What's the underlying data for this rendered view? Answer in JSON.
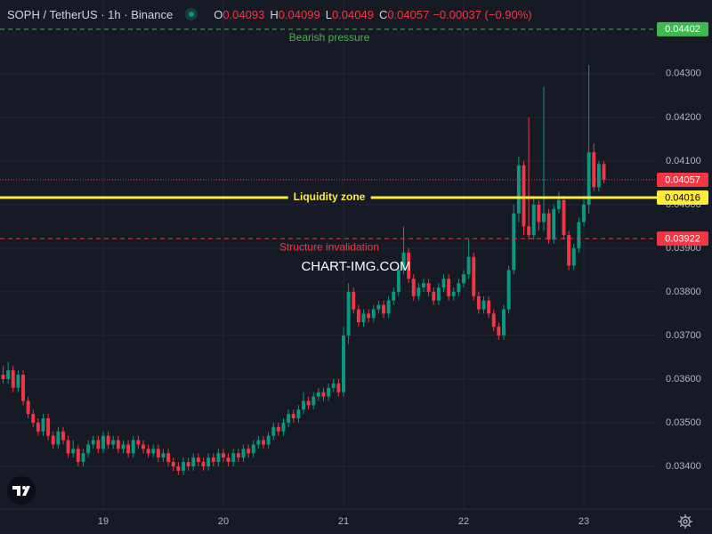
{
  "chart_data": {
    "type": "candlestick",
    "title": "SOPH / TetherUS · 1h · Binance",
    "legend": [
      {
        "key": "O",
        "value": 0.04093
      },
      {
        "key": "H",
        "value": 0.04099
      },
      {
        "key": "L",
        "value": 0.04049
      },
      {
        "key": "C",
        "value": 0.04057
      }
    ],
    "change": "−0.00037 (−0.90%)",
    "watermark": "CHART-IMG.COM",
    "up_color": "#089981",
    "down_color": "#f23645",
    "grid": true,
    "xlim": [
      -20.62,
      110.58
    ],
    "xticks": [
      {
        "value": 0,
        "label": "19"
      },
      {
        "value": 24,
        "label": "20"
      },
      {
        "value": 48,
        "label": "21"
      },
      {
        "value": 72,
        "label": "22"
      },
      {
        "value": 96,
        "label": "23"
      }
    ],
    "ylim": [
      0.03302,
      0.04469
    ],
    "yticks": [
      {
        "value": 0.034,
        "label": "0.03400"
      },
      {
        "value": 0.035,
        "label": "0.03500"
      },
      {
        "value": 0.036,
        "label": "0.03600"
      },
      {
        "value": 0.037,
        "label": "0.03700"
      },
      {
        "value": 0.038,
        "label": "0.03800"
      },
      {
        "value": 0.039,
        "label": "0.03900"
      },
      {
        "value": 0.04,
        "label": "0.04000"
      },
      {
        "value": 0.041,
        "label": "0.04100"
      },
      {
        "value": 0.042,
        "label": "0.04200"
      },
      {
        "value": 0.043,
        "label": "0.04300"
      }
    ],
    "levels": [
      {
        "label": "Bearish pressure",
        "value": 0.04402,
        "color": "#4caf50",
        "style": "dashed"
      },
      {
        "label": "Liquidity zone",
        "value": 0.04016,
        "color": "#ffeb3b",
        "style": "solid"
      },
      {
        "label": "Structure invalidation",
        "value": 0.03922,
        "color": "#f23645",
        "style": "dashed"
      }
    ],
    "last_price": 0.04057,
    "x": [
      -20,
      -19,
      -18,
      -17,
      -16,
      -15,
      -14,
      -13,
      -12,
      -11,
      -10,
      -9,
      -8,
      -7,
      -6,
      -5,
      -4,
      -3,
      -2,
      -1,
      0,
      1,
      2,
      3,
      4,
      5,
      6,
      7,
      8,
      9,
      10,
      11,
      12,
      13,
      14,
      15,
      16,
      17,
      18,
      19,
      20,
      21,
      22,
      23,
      24,
      25,
      26,
      27,
      28,
      29,
      30,
      31,
      32,
      33,
      34,
      35,
      36,
      37,
      38,
      39,
      40,
      41,
      42,
      43,
      44,
      45,
      46,
      47,
      48,
      49,
      50,
      51,
      52,
      53,
      54,
      55,
      56,
      57,
      58,
      59,
      60,
      61,
      62,
      63,
      64,
      65,
      66,
      67,
      68,
      69,
      70,
      71,
      72,
      73,
      74,
      75,
      76,
      77,
      78,
      79,
      80,
      81,
      82,
      83,
      84,
      85,
      86,
      87,
      88,
      89,
      90,
      91,
      92,
      93,
      94,
      95,
      96,
      97,
      98,
      99,
      100
    ],
    "open": [
      0.0361,
      0.036,
      0.0362,
      0.0358,
      0.0361,
      0.0355,
      0.0352,
      0.035,
      0.0348,
      0.0351,
      0.0347,
      0.0345,
      0.0348,
      0.0346,
      0.0343,
      0.0344,
      0.0341,
      0.0343,
      0.0345,
      0.0346,
      0.0344,
      0.0347,
      0.0345,
      0.0346,
      0.0344,
      0.0345,
      0.0343,
      0.0346,
      0.0345,
      0.0344,
      0.0343,
      0.0344,
      0.0342,
      0.0343,
      0.0341,
      0.034,
      0.0339,
      0.0341,
      0.034,
      0.0342,
      0.0341,
      0.034,
      0.0342,
      0.0341,
      0.0343,
      0.0342,
      0.0341,
      0.0343,
      0.0342,
      0.0344,
      0.0343,
      0.0345,
      0.0346,
      0.0345,
      0.0347,
      0.0349,
      0.0348,
      0.035,
      0.0352,
      0.0351,
      0.0353,
      0.0355,
      0.0354,
      0.0356,
      0.0357,
      0.0356,
      0.0358,
      0.0359,
      0.0357,
      0.037,
      0.038,
      0.0376,
      0.0373,
      0.0375,
      0.0374,
      0.0376,
      0.0377,
      0.0375,
      0.0378,
      0.038,
      0.0385,
      0.0389,
      0.0383,
      0.0379,
      0.0381,
      0.0382,
      0.038,
      0.0378,
      0.0381,
      0.0383,
      0.0379,
      0.038,
      0.0382,
      0.0384,
      0.0388,
      0.0379,
      0.0376,
      0.0378,
      0.0375,
      0.0372,
      0.037,
      0.0376,
      0.0385,
      0.0398,
      0.0409,
      0.0395,
      0.0393,
      0.04,
      0.0396,
      0.0398,
      0.0392,
      0.0399,
      0.0401,
      0.0393,
      0.0386,
      0.039,
      0.0396,
      0.04,
      0.0412,
      0.0404,
      0.04093
    ],
    "high": [
      0.0363,
      0.0364,
      0.0363,
      0.0362,
      0.0362,
      0.0356,
      0.0353,
      0.0351,
      0.0352,
      0.0352,
      0.0348,
      0.0349,
      0.0349,
      0.0347,
      0.0346,
      0.0345,
      0.0344,
      0.0346,
      0.0347,
      0.0347,
      0.0348,
      0.0348,
      0.0347,
      0.0347,
      0.0346,
      0.0346,
      0.0347,
      0.0347,
      0.0346,
      0.0345,
      0.0345,
      0.0345,
      0.0344,
      0.0344,
      0.0342,
      0.0341,
      0.0342,
      0.0342,
      0.0343,
      0.0343,
      0.0342,
      0.0343,
      0.0343,
      0.0344,
      0.0344,
      0.0343,
      0.0344,
      0.0344,
      0.0345,
      0.0345,
      0.0346,
      0.0347,
      0.0347,
      0.0348,
      0.035,
      0.035,
      0.0351,
      0.0353,
      0.0353,
      0.0354,
      0.0357,
      0.0356,
      0.0357,
      0.0358,
      0.0358,
      0.0359,
      0.036,
      0.036,
      0.0372,
      0.0382,
      0.0381,
      0.0377,
      0.0376,
      0.0376,
      0.0377,
      0.0378,
      0.0378,
      0.0379,
      0.0381,
      0.0386,
      0.0395,
      0.039,
      0.0384,
      0.0382,
      0.0383,
      0.0383,
      0.0381,
      0.0382,
      0.0384,
      0.0384,
      0.0381,
      0.0383,
      0.0385,
      0.0392,
      0.0389,
      0.038,
      0.0379,
      0.0379,
      0.0376,
      0.0373,
      0.0377,
      0.0386,
      0.04,
      0.0411,
      0.041,
      0.042,
      0.0402,
      0.0401,
      0.0427,
      0.0399,
      0.04,
      0.0403,
      0.0402,
      0.0394,
      0.0391,
      0.0397,
      0.0402,
      0.0432,
      0.0414,
      0.041,
      0.04099
    ],
    "low": [
      0.0359,
      0.0359,
      0.0357,
      0.0357,
      0.0354,
      0.0351,
      0.0349,
      0.0347,
      0.0347,
      0.0346,
      0.0344,
      0.0344,
      0.0345,
      0.0342,
      0.0342,
      0.034,
      0.034,
      0.0342,
      0.0344,
      0.0343,
      0.0343,
      0.0344,
      0.0344,
      0.0343,
      0.0343,
      0.0342,
      0.0342,
      0.0344,
      0.0343,
      0.0342,
      0.0342,
      0.0341,
      0.0341,
      0.034,
      0.0339,
      0.0338,
      0.0338,
      0.0339,
      0.0339,
      0.034,
      0.0339,
      0.0339,
      0.034,
      0.034,
      0.0341,
      0.034,
      0.034,
      0.0341,
      0.0341,
      0.0342,
      0.0342,
      0.0344,
      0.0344,
      0.0344,
      0.0346,
      0.0347,
      0.0347,
      0.0349,
      0.035,
      0.035,
      0.0352,
      0.0353,
      0.0353,
      0.0355,
      0.0355,
      0.0355,
      0.0357,
      0.0356,
      0.0356,
      0.0368,
      0.0375,
      0.0372,
      0.0372,
      0.0373,
      0.0373,
      0.0375,
      0.0374,
      0.0374,
      0.0377,
      0.0379,
      0.0384,
      0.0382,
      0.0378,
      0.0378,
      0.038,
      0.0379,
      0.0377,
      0.0377,
      0.038,
      0.0378,
      0.0378,
      0.0379,
      0.0381,
      0.0383,
      0.0378,
      0.0375,
      0.0375,
      0.0374,
      0.0371,
      0.0369,
      0.0369,
      0.0375,
      0.0384,
      0.0396,
      0.0393,
      0.0392,
      0.0392,
      0.0394,
      0.0394,
      0.0391,
      0.0391,
      0.0398,
      0.0392,
      0.0385,
      0.0385,
      0.0389,
      0.0395,
      0.0398,
      0.0403,
      0.0403,
      0.04049
    ],
    "close": [
      0.036,
      0.0362,
      0.0358,
      0.0361,
      0.0355,
      0.0352,
      0.035,
      0.0348,
      0.0351,
      0.0347,
      0.0345,
      0.0348,
      0.0346,
      0.0343,
      0.0344,
      0.0341,
      0.0343,
      0.0345,
      0.0346,
      0.0344,
      0.0347,
      0.0345,
      0.0346,
      0.0344,
      0.0345,
      0.0343,
      0.0346,
      0.0345,
      0.0344,
      0.0343,
      0.0344,
      0.0342,
      0.0343,
      0.0341,
      0.034,
      0.0339,
      0.0341,
      0.034,
      0.0342,
      0.0341,
      0.034,
      0.0342,
      0.0341,
      0.0343,
      0.0342,
      0.0341,
      0.0343,
      0.0342,
      0.0344,
      0.0343,
      0.0345,
      0.0346,
      0.0345,
      0.0347,
      0.0349,
      0.0348,
      0.035,
      0.0352,
      0.0351,
      0.0353,
      0.0355,
      0.0354,
      0.0356,
      0.0357,
      0.0356,
      0.0358,
      0.0359,
      0.0357,
      0.037,
      0.038,
      0.0376,
      0.0373,
      0.0375,
      0.0374,
      0.0376,
      0.0377,
      0.0375,
      0.0378,
      0.038,
      0.0385,
      0.0389,
      0.0383,
      0.0379,
      0.0381,
      0.0382,
      0.038,
      0.0378,
      0.0381,
      0.0383,
      0.0379,
      0.038,
      0.0382,
      0.0384,
      0.0388,
      0.0379,
      0.0376,
      0.0378,
      0.0375,
      0.0372,
      0.037,
      0.0376,
      0.0385,
      0.0398,
      0.0409,
      0.0395,
      0.0393,
      0.04,
      0.0396,
      0.0398,
      0.0392,
      0.0399,
      0.0401,
      0.0393,
      0.0386,
      0.039,
      0.0396,
      0.04,
      0.0412,
      0.0404,
      0.04093,
      0.04057
    ]
  }
}
